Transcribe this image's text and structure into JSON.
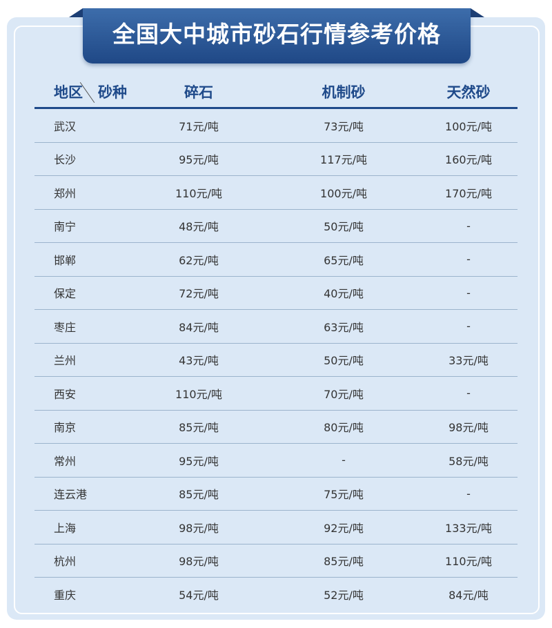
{
  "title": "全国大中城市砂石行情参考价格",
  "header": {
    "region": "地区",
    "type": "砂种",
    "cols": [
      "碎石",
      "机制砂",
      "天然砂"
    ]
  },
  "colors": {
    "primary": "#1f4a8a",
    "background": "#dbe8f6"
  },
  "rows": [
    [
      "武汉",
      "71元/吨",
      "73元/吨",
      "100元/吨"
    ],
    [
      "长沙",
      "95元/吨",
      "117元/吨",
      "160元/吨"
    ],
    [
      "郑州",
      "110元/吨",
      "100元/吨",
      "170元/吨"
    ],
    [
      "南宁",
      "48元/吨",
      "50元/吨",
      "-"
    ],
    [
      "邯郸",
      "62元/吨",
      "65元/吨",
      "-"
    ],
    [
      "保定",
      "72元/吨",
      "40元/吨",
      "-"
    ],
    [
      "枣庄",
      "84元/吨",
      "63元/吨",
      "-"
    ],
    [
      "兰州",
      "43元/吨",
      "50元/吨",
      "33元/吨"
    ],
    [
      "西安",
      "110元/吨",
      "70元/吨",
      "-"
    ],
    [
      "南京",
      "85元/吨",
      "80元/吨",
      "98元/吨"
    ],
    [
      "常州",
      "95元/吨",
      "-",
      "58元/吨"
    ],
    [
      "连云港",
      "85元/吨",
      "75元/吨",
      "-"
    ],
    [
      "上海",
      "98元/吨",
      "92元/吨",
      "133元/吨"
    ],
    [
      "杭州",
      "98元/吨",
      "85元/吨",
      "110元/吨"
    ],
    [
      "重庆",
      "54元/吨",
      "52元/吨",
      "84元/吨"
    ]
  ]
}
